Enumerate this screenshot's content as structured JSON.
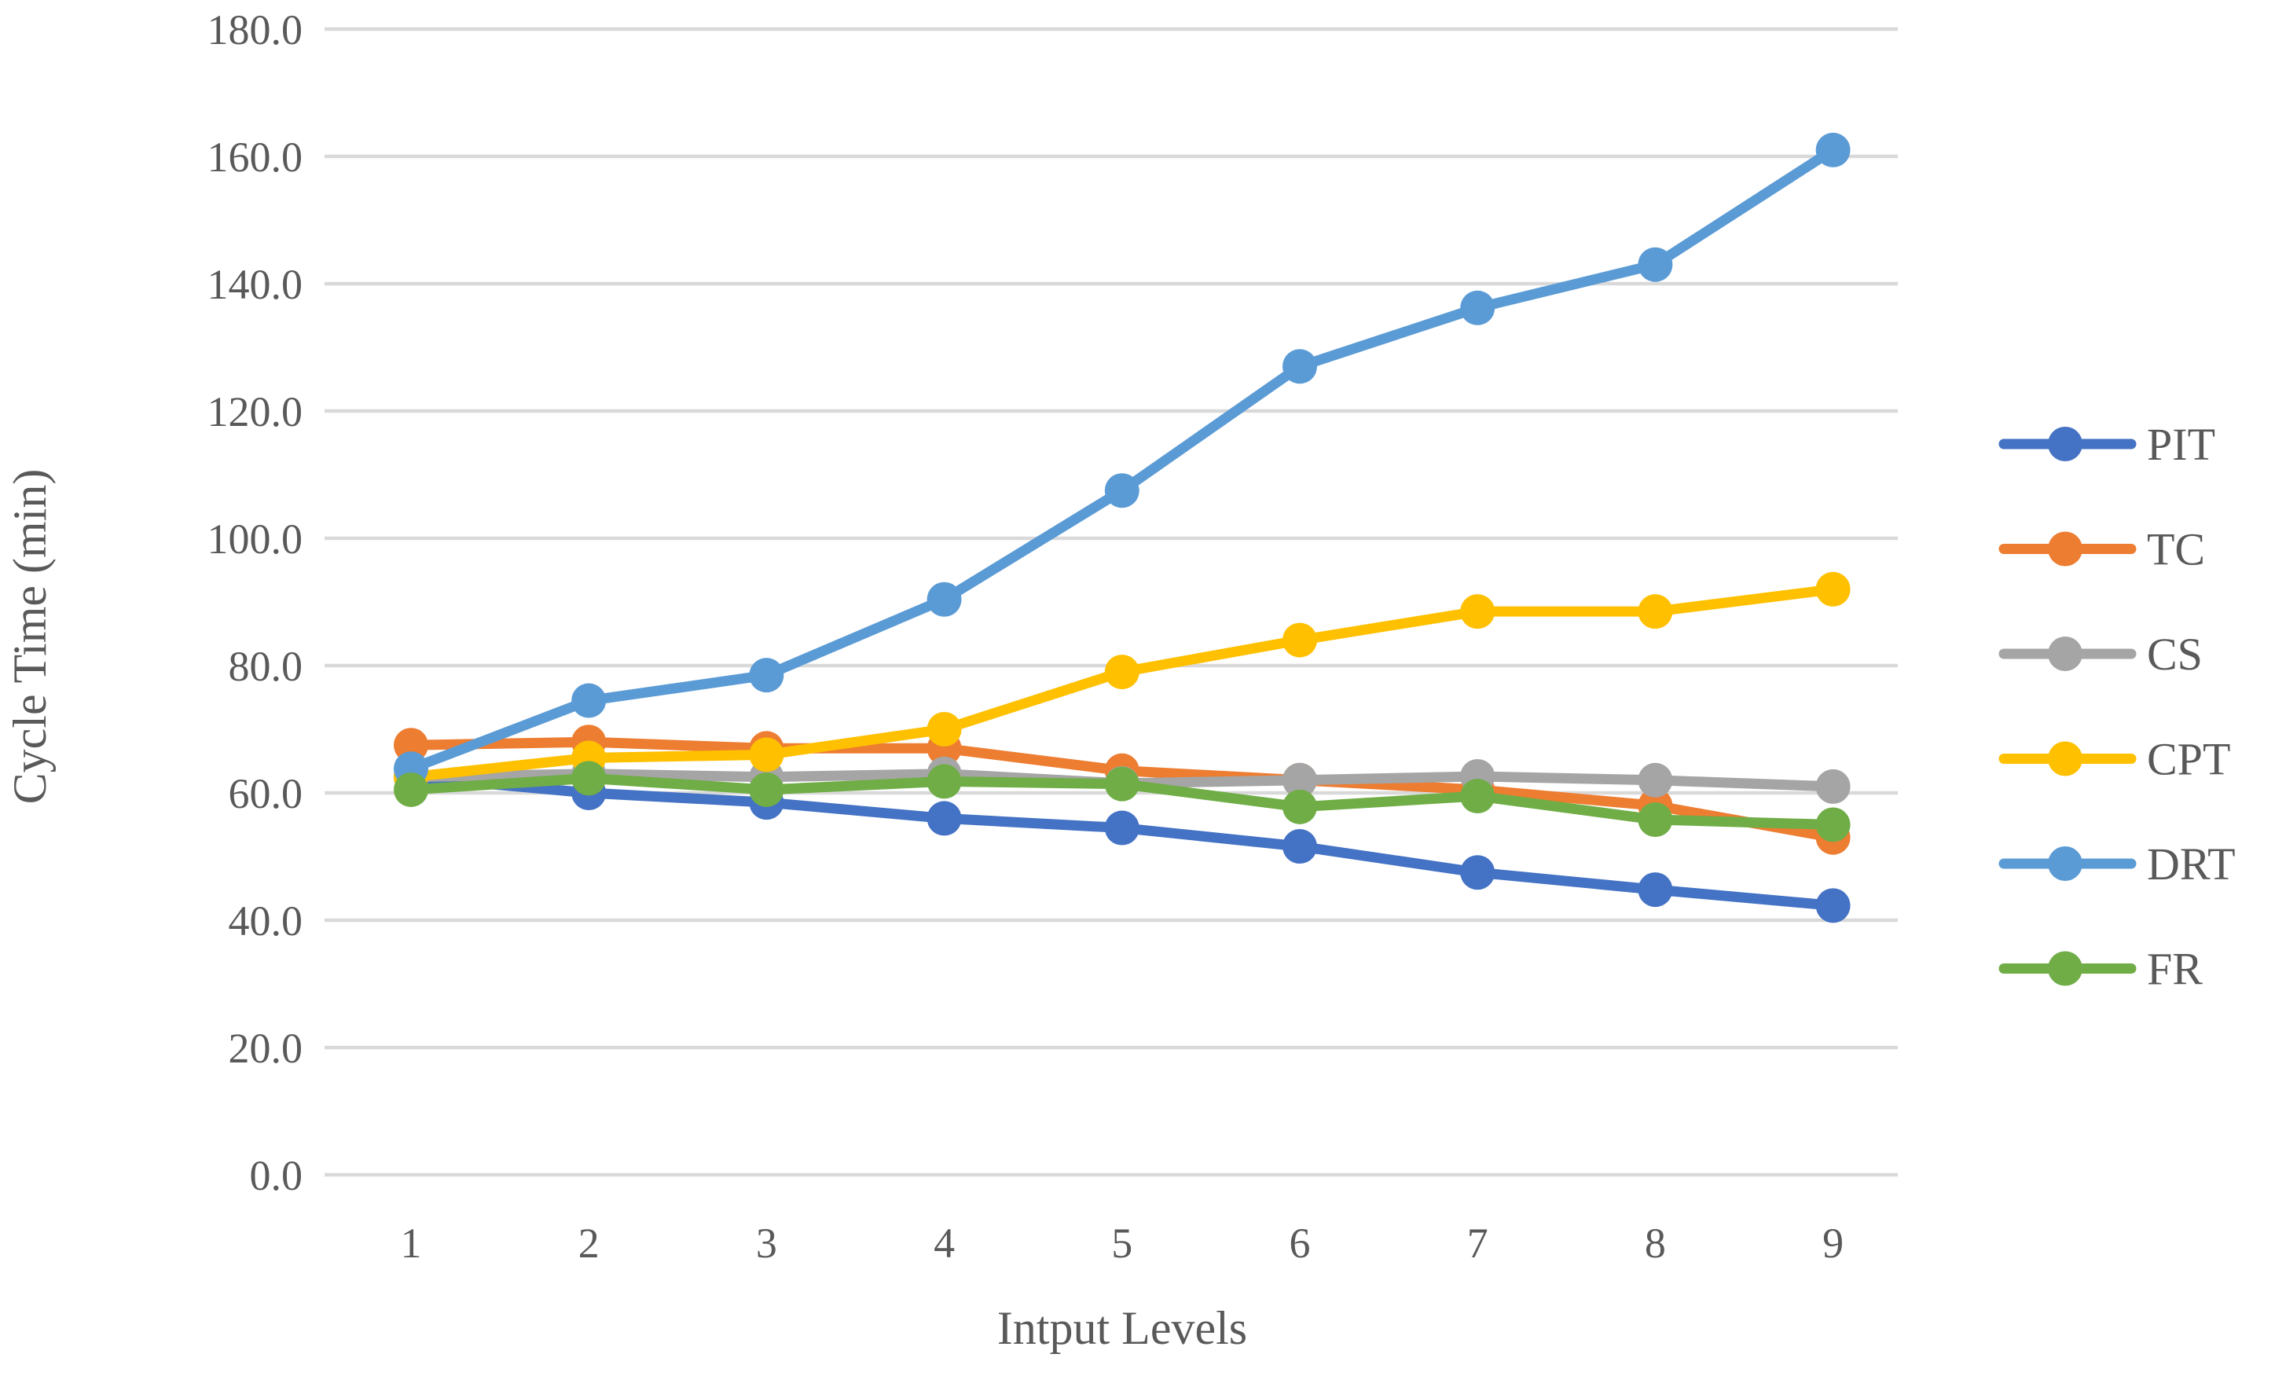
{
  "style": {
    "background": "#FFFFFF",
    "text_color": "#595959",
    "gridline_color": "#D9D9D9"
  },
  "chart_data": {
    "type": "line",
    "title": "",
    "xlabel": "Intput Levels",
    "ylabel": "Cycle Time (min)",
    "categories": [
      "1",
      "2",
      "3",
      "4",
      "5",
      "6",
      "7",
      "8",
      "9"
    ],
    "ylim": [
      0,
      180
    ],
    "ytick_step": 20,
    "ytick_labels": [
      "0.0",
      "20.0",
      "40.0",
      "60.0",
      "80.0",
      "100.0",
      "120.0",
      "140.0",
      "160.0",
      "180.0"
    ],
    "grid": true,
    "legend_position": "right",
    "legend_entries": [
      "PIT",
      "TC",
      "CS",
      "CPT",
      "DRT",
      "FR"
    ],
    "series": [
      {
        "name": "PIT",
        "color": "#4472C4",
        "values": [
          62.5,
          60.0,
          58.5,
          56.0,
          54.5,
          51.6,
          47.5,
          44.8,
          42.3
        ]
      },
      {
        "name": "TC",
        "color": "#ED7D31",
        "values": [
          67.5,
          68.0,
          67.0,
          67.0,
          63.5,
          62.0,
          60.5,
          58.0,
          53.0
        ]
      },
      {
        "name": "CS",
        "color": "#A5A5A5",
        "values": [
          62.5,
          63.0,
          62.5,
          63.0,
          61.5,
          62.0,
          62.6,
          62.0,
          61.0
        ]
      },
      {
        "name": "CPT",
        "color": "#FFC000",
        "values": [
          62.5,
          65.5,
          66.0,
          70.0,
          79.0,
          84.0,
          88.5,
          88.5,
          92.0
        ]
      },
      {
        "name": "DRT",
        "color": "#5B9BD5",
        "values": [
          63.8,
          74.5,
          78.5,
          90.4,
          107.5,
          127.0,
          136.2,
          143.0,
          161.0
        ]
      },
      {
        "name": "FR",
        "color": "#70AD47",
        "values": [
          60.5,
          62.3,
          60.5,
          61.8,
          61.4,
          57.8,
          59.5,
          55.8,
          55.0
        ]
      }
    ]
  }
}
